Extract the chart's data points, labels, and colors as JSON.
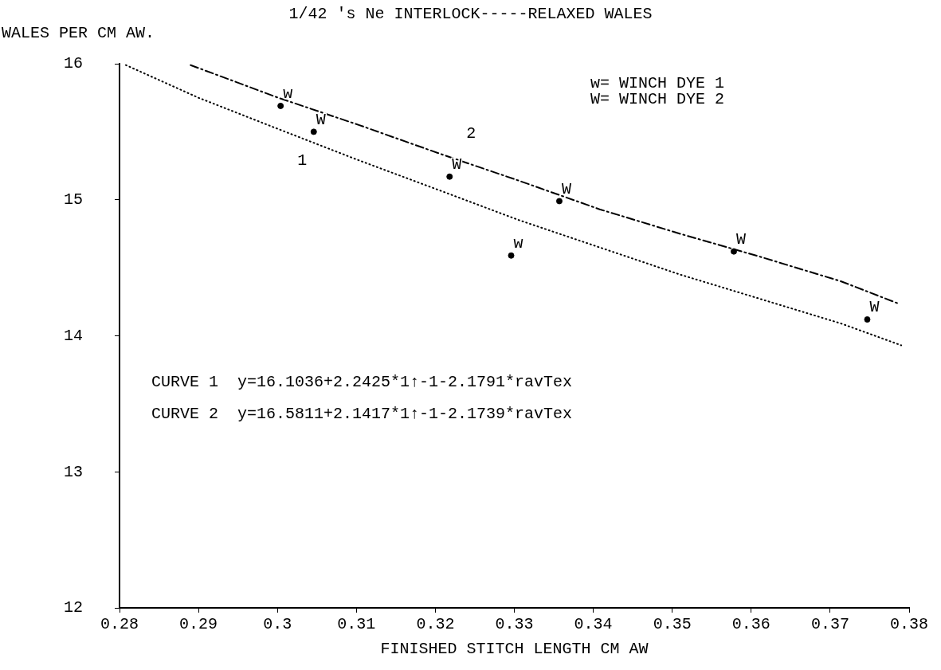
{
  "chart_data": {
    "type": "line",
    "title": "1/42 's Ne INTERLOCK-----RELAXED WALES",
    "ylabel": "WALES PER CM AW.",
    "xlabel": "FINISHED STITCH LENGTH CM AW",
    "xlim": [
      0.28,
      0.38
    ],
    "xticks": [
      {
        "value": 0.28,
        "label": "0.28"
      },
      {
        "value": 0.29,
        "label": "0.29"
      },
      {
        "value": 0.3,
        "label": "0.3"
      },
      {
        "value": 0.31,
        "label": "0.31"
      },
      {
        "value": 0.32,
        "label": "0.32"
      },
      {
        "value": 0.33,
        "label": "0.33"
      },
      {
        "value": 0.34,
        "label": "0.34"
      },
      {
        "value": 0.35,
        "label": "0.35"
      },
      {
        "value": 0.36,
        "label": "0.36"
      },
      {
        "value": 0.37,
        "label": "0.37"
      },
      {
        "value": 0.38,
        "label": "0.38"
      }
    ],
    "ylim": [
      12,
      16
    ],
    "yticks": [
      12,
      13,
      14,
      15,
      16
    ],
    "grid": false,
    "legend": false,
    "series": [
      {
        "name": "1",
        "color": "#000000",
        "line_style": "dotted",
        "x": [
          0.2808,
          0.29,
          0.3001,
          0.3103,
          0.3205,
          0.3306,
          0.3408,
          0.351,
          0.3612,
          0.3714,
          0.379
        ],
        "values": [
          15.99,
          15.75,
          15.52,
          15.29,
          15.07,
          14.85,
          14.65,
          14.45,
          14.27,
          14.09,
          13.93
        ]
      },
      {
        "name": "2",
        "color": "#000000",
        "line_style": "dashed",
        "x": [
          0.289,
          0.3001,
          0.3103,
          0.3205,
          0.3306,
          0.3408,
          0.351,
          0.3612,
          0.3714,
          0.3785
        ],
        "values": [
          15.99,
          15.75,
          15.55,
          15.34,
          15.14,
          14.93,
          14.75,
          14.58,
          14.4,
          14.24
        ]
      },
      {
        "type": "scatter",
        "name": "w",
        "color": "#000000",
        "x": [
          0.3004,
          0.3296
        ],
        "values": [
          15.69,
          14.59
        ]
      },
      {
        "type": "scatter",
        "name": "W",
        "color": "#000000",
        "x": [
          0.3046,
          0.3218,
          0.3357,
          0.3578,
          0.3747
        ],
        "values": [
          15.5,
          15.17,
          14.99,
          14.62,
          14.12
        ]
      }
    ],
    "annotations": [
      "w= WINCH DYE 1",
      "W= WINCH DYE 2",
      "CURVE 1  y=16.1036+2.2425*1↑-1-2.1791*ravTex",
      "CURVE 2  y=16.5811+2.1417*1↑-1-2.1739*ravTex"
    ]
  }
}
